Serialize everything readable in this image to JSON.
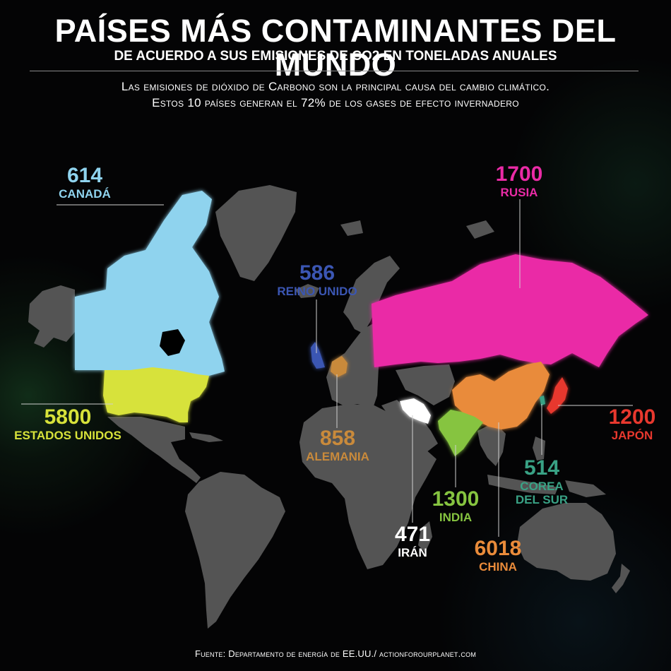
{
  "header": {
    "title": "PAÍSES MÁS CONTAMINANTES DEL MUNDO",
    "subtitle": "DE ACUERDO A SUS EMISIONES DE CO2 EN TONELADAS ANUALES",
    "description_line1": "Las emisiones de dióxido de Carbono son la principal causa del cambio climático.",
    "description_line2": "Estos 10 países generan el 72% de los gases de efecto invernadero"
  },
  "countries": [
    {
      "id": "canada",
      "value": "614",
      "name": "CANADÁ",
      "color": "#8fd3ee"
    },
    {
      "id": "usa",
      "value": "5800",
      "name": "ESTADOS UNIDOS",
      "color": "#d7e23a"
    },
    {
      "id": "uk",
      "value": "586",
      "name": "REINO UNIDO",
      "color": "#3b56b3"
    },
    {
      "id": "germany",
      "value": "858",
      "name": "ALEMANIA",
      "color": "#c98a3b"
    },
    {
      "id": "russia",
      "value": "1700",
      "name": "RUSIA",
      "color": "#ea2ba6"
    },
    {
      "id": "japan",
      "value": "1200",
      "name": "JAPÓN",
      "color": "#e8382e"
    },
    {
      "id": "south_korea",
      "value": "514",
      "name_line1": "COREA",
      "name_line2": "DEL SUR",
      "color": "#39a285"
    },
    {
      "id": "india",
      "value": "1300",
      "name": "INDIA",
      "color": "#86c440"
    },
    {
      "id": "iran",
      "value": "471",
      "name": "IRÁN",
      "color": "#ffffff"
    },
    {
      "id": "china",
      "value": "6018",
      "name": "CHINA",
      "color": "#e98b3a"
    }
  ],
  "land_color": "#545454",
  "footer": {
    "source": "Fuente: Departamento de energía de EE.UU./ actionforourplanet.com"
  }
}
